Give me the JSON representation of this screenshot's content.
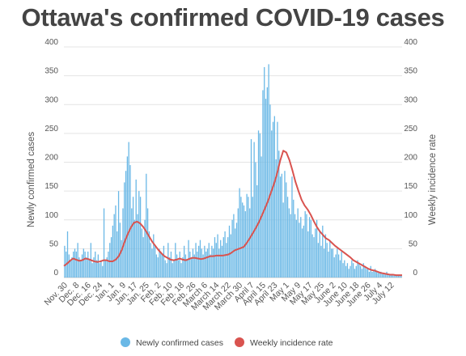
{
  "chart_data": {
    "type": "bar",
    "title": "Ottawa's confirmed COVID-19 cases",
    "ylabel": "Newly confirmed cases",
    "ylabel_right": "Weekly incidence rate",
    "ylim": [
      0,
      400
    ],
    "yticks": [
      "0",
      "50",
      "100",
      "150",
      "200",
      "250",
      "300",
      "350",
      "400"
    ],
    "yticks_right": [
      "0",
      "50",
      "100",
      "150",
      "200",
      "250",
      "300",
      "350",
      "400"
    ],
    "grid": true,
    "legend_position": "bottom",
    "colors": {
      "bars": "#6ab8e6",
      "line": "#d9534f"
    },
    "x_tick_labels": [
      "Nov. 30",
      "Dec. 8",
      "Dec. 16",
      "Dec. 24",
      "Jan. 1",
      "Jan. 9",
      "Jan. 17",
      "Jan. 25",
      "Feb. 2",
      "Feb. 10",
      "Feb. 18",
      "Feb. 26",
      "March 6",
      "March 14",
      "March 22",
      "March 30",
      "April 7",
      "April 15",
      "April 23",
      "May 1",
      "May 9",
      "May 17",
      "May 25",
      "June 2",
      "June 10",
      "June 18",
      "June 26",
      "July 4",
      "July 12"
    ],
    "series": [
      {
        "name": "Newly confirmed cases",
        "type": "bar",
        "points_per_tick": 8,
        "values": [
          55,
          45,
          80,
          40,
          30,
          35,
          45,
          50,
          45,
          60,
          35,
          30,
          40,
          50,
          45,
          35,
          45,
          30,
          60,
          25,
          35,
          45,
          30,
          40,
          25,
          30,
          20,
          120,
          30,
          35,
          45,
          60,
          70,
          90,
          110,
          125,
          80,
          150,
          95,
          65,
          120,
          165,
          185,
          210,
          235,
          195,
          120,
          140,
          100,
          170,
          110,
          150,
          140,
          85,
          70,
          100,
          180,
          120,
          80,
          60,
          50,
          75,
          55,
          40,
          35,
          50,
          45,
          40,
          55,
          30,
          25,
          60,
          35,
          45,
          25,
          30,
          60,
          40,
          30,
          45,
          25,
          35,
          55,
          40,
          30,
          65,
          45,
          35,
          50,
          40,
          60,
          45,
          55,
          65,
          50,
          40,
          55,
          45,
          50,
          60,
          40,
          55,
          50,
          70,
          60,
          75,
          50,
          65,
          55,
          70,
          80,
          60,
          70,
          90,
          75,
          100,
          110,
          85,
          95,
          120,
          155,
          140,
          130,
          125,
          115,
          145,
          140,
          120,
          240,
          140,
          235,
          200,
          160,
          255,
          250,
          210,
          325,
          365,
          310,
          330,
          370,
          300,
          255,
          270,
          280,
          205,
          270,
          220,
          175,
          180,
          130,
          185,
          165,
          140,
          120,
          110,
          175,
          135,
          110,
          100,
          120,
          95,
          105,
          85,
          90,
          115,
          110,
          80,
          105,
          100,
          75,
          70,
          85,
          100,
          60,
          80,
          55,
          90,
          50,
          75,
          60,
          45,
          65,
          50,
          50,
          35,
          40,
          50,
          40,
          30,
          45,
          25,
          30,
          20,
          25,
          15,
          20,
          30,
          25,
          15,
          20,
          30,
          25,
          20,
          15,
          25,
          20,
          15,
          15,
          10,
          20,
          10,
          12,
          15,
          10,
          8,
          8,
          10,
          6,
          8,
          5,
          10,
          6,
          5,
          4,
          6,
          5,
          4,
          5,
          3,
          4,
          5
        ]
      },
      {
        "name": "Weekly incidence rate",
        "type": "line",
        "values": [
          20,
          24,
          29,
          33,
          31,
          29,
          30,
          33,
          32,
          30,
          28,
          27,
          28,
          30,
          30,
          28,
          28,
          31,
          37,
          48,
          63,
          76,
          87,
          95,
          97,
          94,
          88,
          80,
          71,
          62,
          55,
          48,
          42,
          37,
          34,
          31,
          30,
          31,
          33,
          31,
          30,
          32,
          34,
          34,
          33,
          32,
          33,
          35,
          37,
          37,
          38,
          38,
          38,
          39,
          40,
          43,
          47,
          49,
          51,
          53,
          60,
          68,
          77,
          86,
          96,
          108,
          120,
          133,
          148,
          163,
          181,
          203,
          220,
          217,
          204,
          186,
          166,
          150,
          135,
          125,
          118,
          109,
          98,
          88,
          80,
          74,
          68,
          65,
          60,
          55,
          51,
          47,
          43,
          39,
          35,
          30,
          27,
          24,
          21,
          18,
          15,
          13,
          12,
          10,
          8,
          7,
          6,
          5,
          5,
          4,
          4,
          4
        ]
      }
    ]
  }
}
